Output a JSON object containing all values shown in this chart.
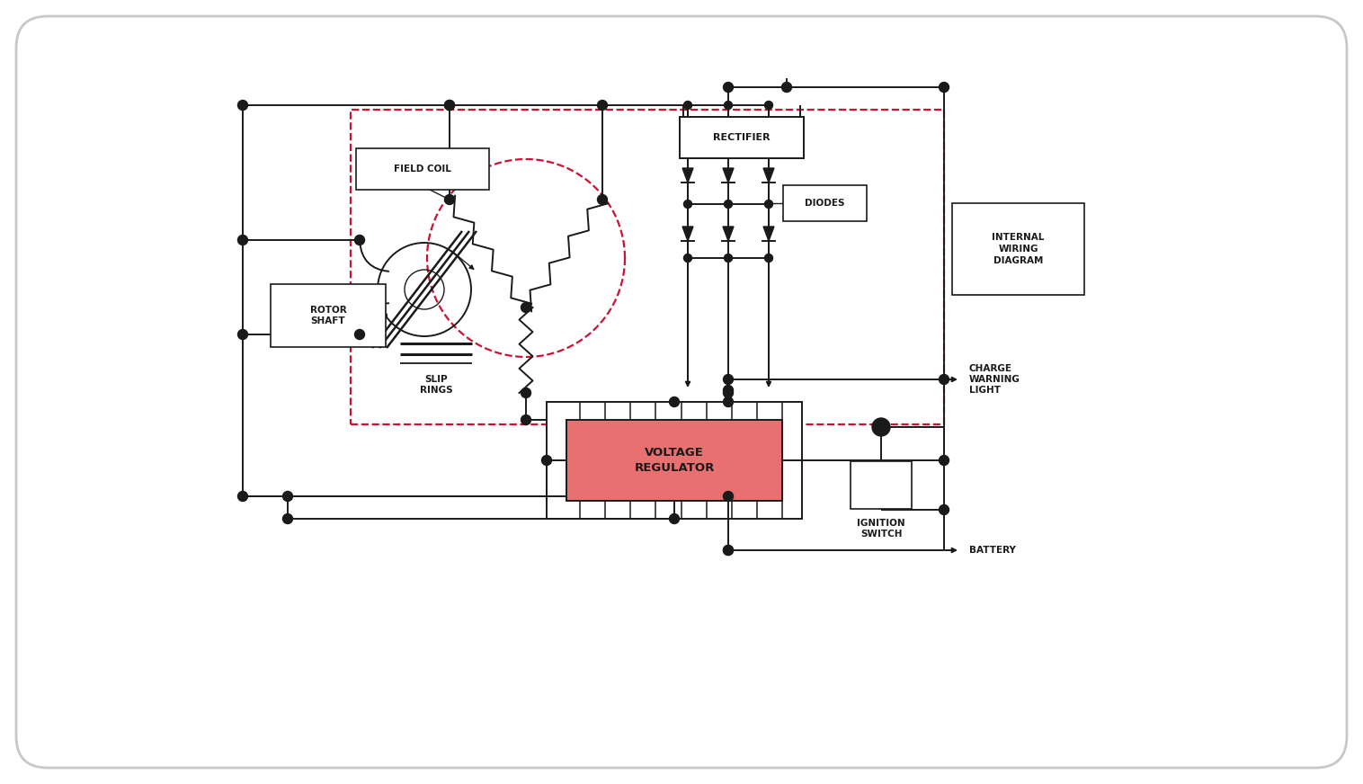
{
  "bg_color": "#ffffff",
  "card_bg": "#ffffff",
  "card_edge": "#cccccc",
  "line_color": "#1a1a1a",
  "dashed_pink": "#cc1133",
  "voltage_reg_fill": "#e87070",
  "label_field_coil": "FIELD COIL",
  "label_rotor_shaft": "ROTOR\nSHAFT",
  "label_slip_rings": "SLIP\nRINGS",
  "label_rectifier": "RECTIFIER",
  "label_diodes": "DIODES",
  "label_internal": "INTERNAL\nWIRING\nDIAGRAM",
  "label_voltage_reg": "VOLTAGE\nREGULATOR",
  "label_charge_warning": "CHARGE\nWARNING\nLIGHT",
  "label_ignition": "IGNITION\nSWITCH",
  "label_battery": "BATTERY",
  "fs": 7.5
}
